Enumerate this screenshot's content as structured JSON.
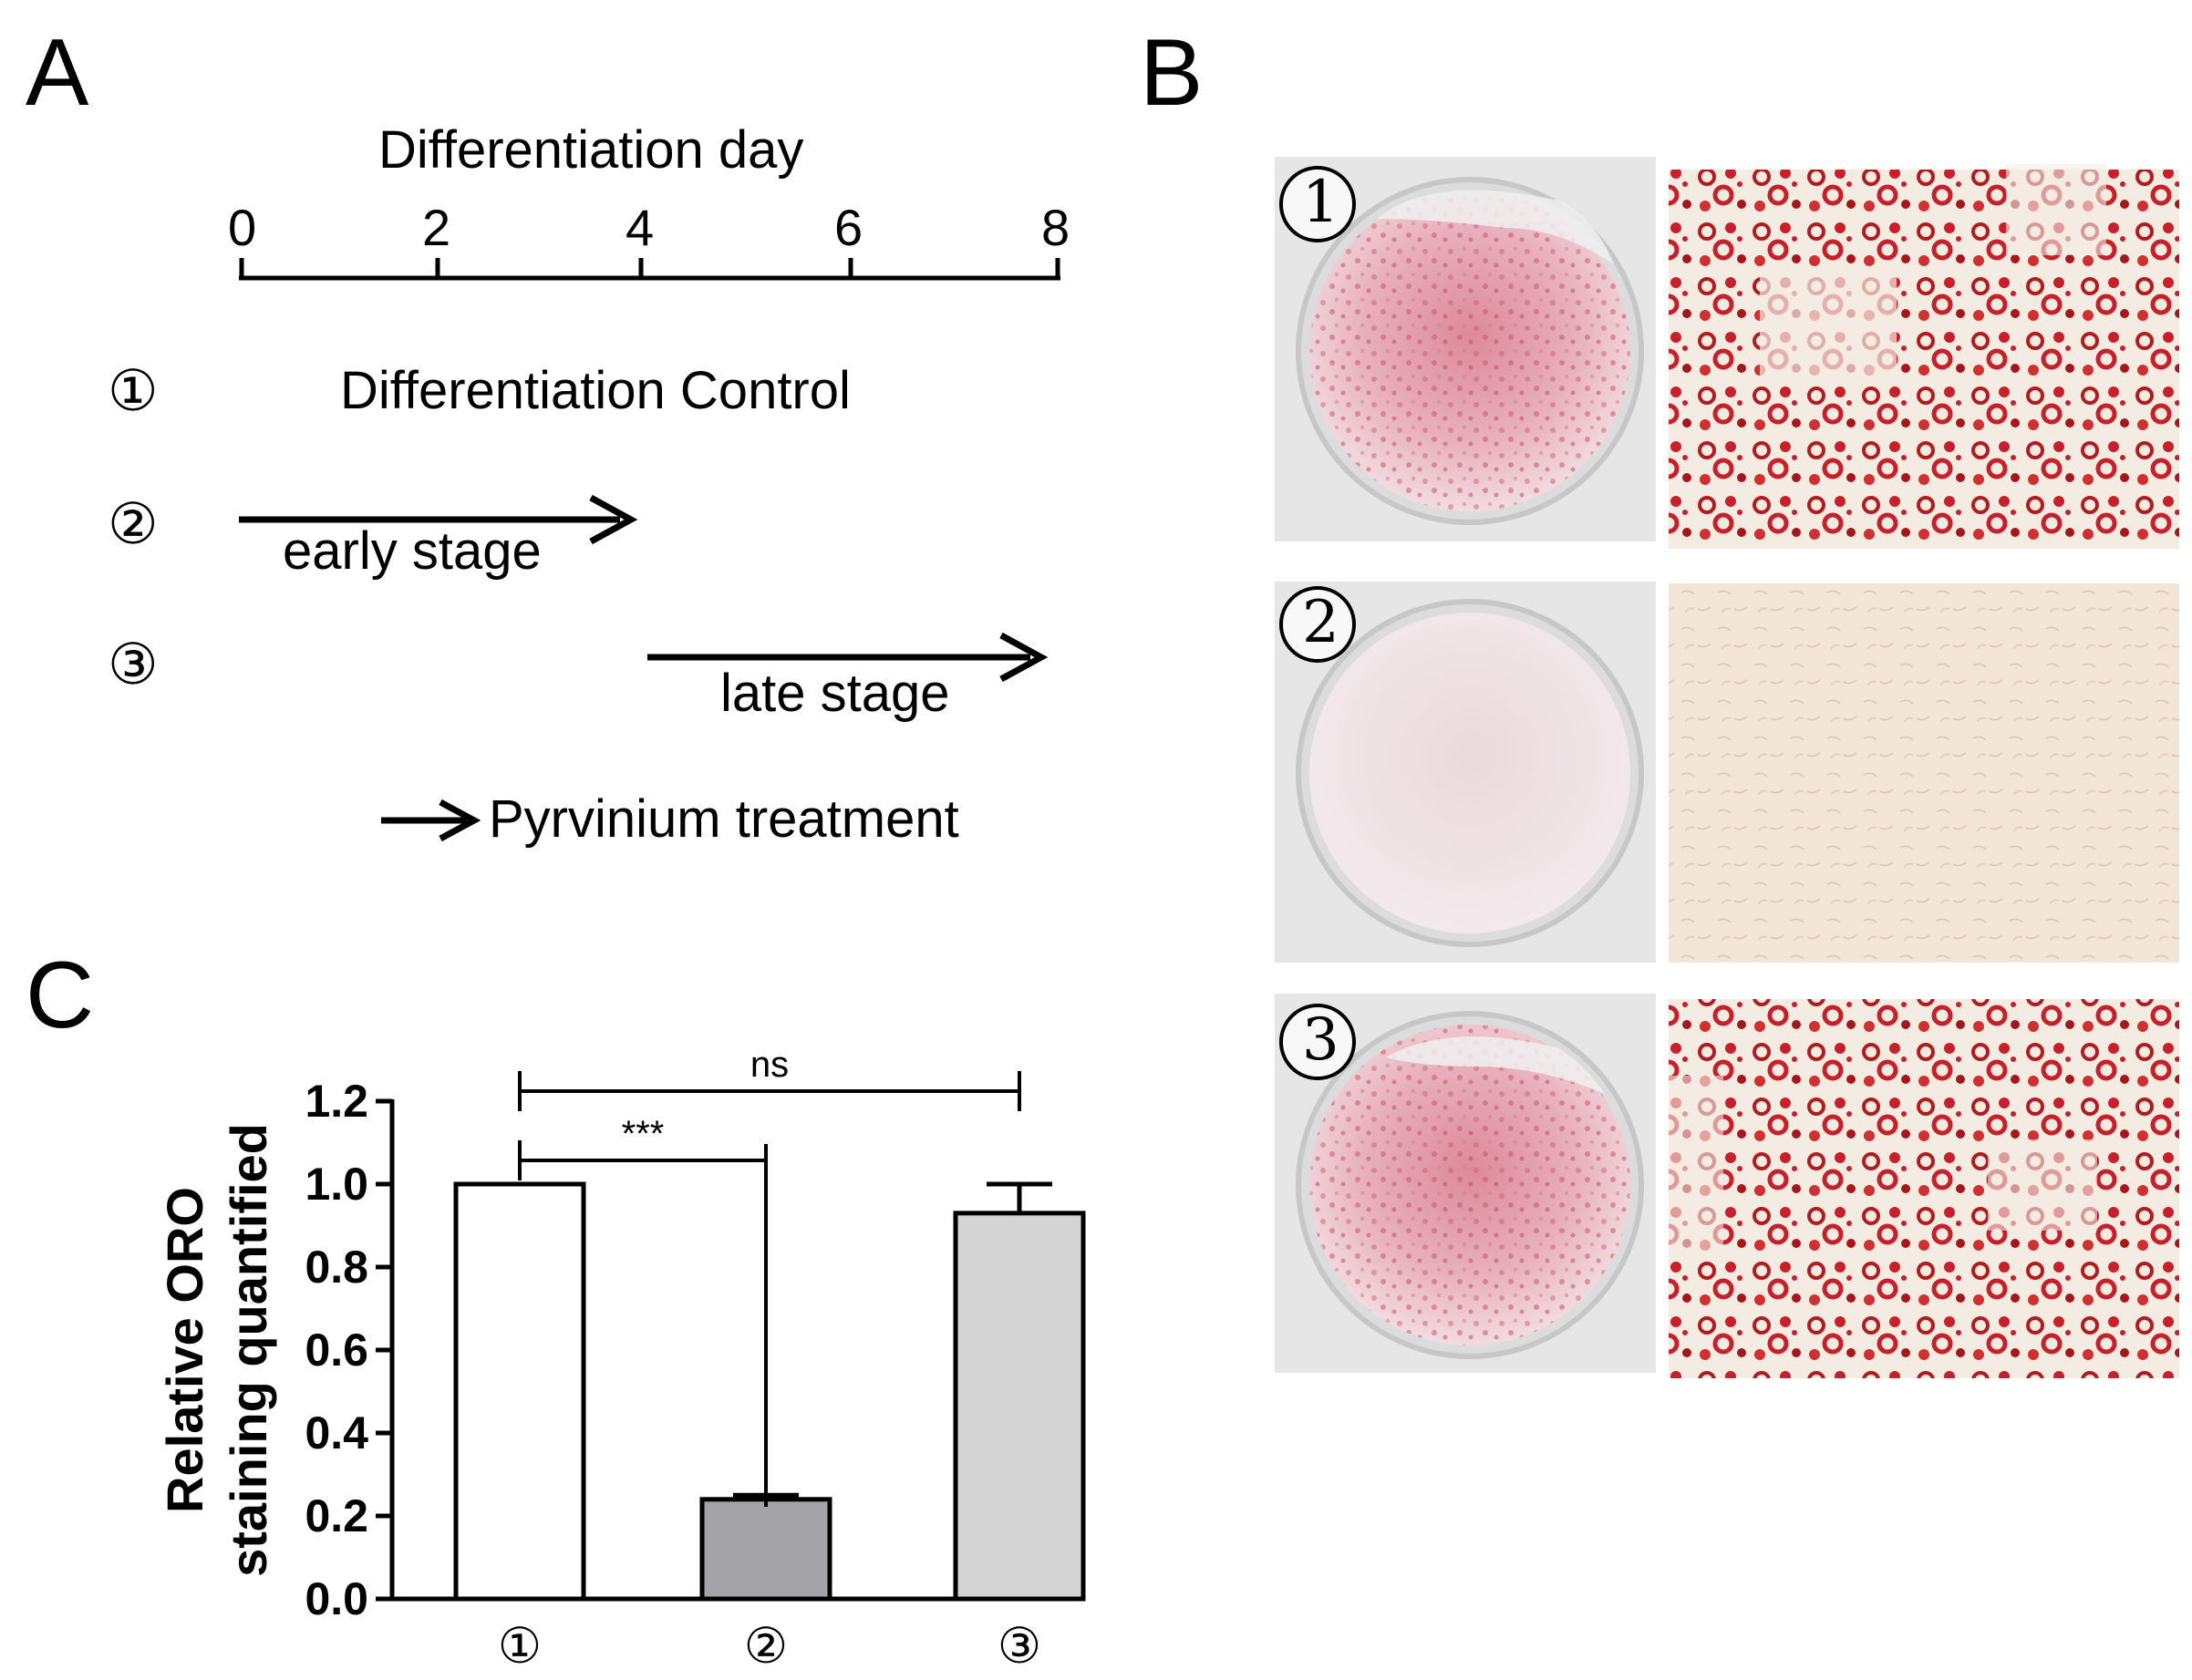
{
  "panel_a": {
    "letter": "A",
    "timeline_title": "Differentiation day",
    "ticks": [
      "0",
      "2",
      "4",
      "6",
      "8"
    ],
    "rows": [
      {
        "marker": "①",
        "label": "Differentiation Control"
      },
      {
        "marker": "②",
        "label": "early stage"
      },
      {
        "marker": "③",
        "label": "late stage"
      }
    ],
    "legend": "Pyrvinium treatment"
  },
  "panel_b": {
    "letter": "B",
    "rows": [
      {
        "marker": "①",
        "stain": "high"
      },
      {
        "marker": "②",
        "stain": "none"
      },
      {
        "marker": "③",
        "stain": "high"
      }
    ],
    "colors": {
      "stain_red": "#c8202a",
      "well_pink": "#e8a0ae",
      "background_beige": "#f3e9dc"
    }
  },
  "panel_c": {
    "letter": "C",
    "chart_data": {
      "type": "bar",
      "categories": [
        "①",
        "②",
        "③"
      ],
      "values": [
        1.0,
        0.24,
        0.93
      ],
      "errors": [
        0.0,
        0.01,
        0.07
      ],
      "bar_colors": [
        "#ffffff",
        "#a3a3a8",
        "#d4d4d4"
      ],
      "ylabel": "Relative ORO staining quantified",
      "ylabel_lines": [
        "Relative ORO",
        "staining quantified"
      ],
      "ylim": [
        0,
        1.2
      ],
      "yticks": [
        "0.0",
        "0.2",
        "0.4",
        "0.6",
        "0.8",
        "1.0",
        "1.2"
      ],
      "significance": [
        {
          "from": 0,
          "to": 1,
          "label": "***"
        },
        {
          "from": 0,
          "to": 2,
          "label": "ns"
        }
      ]
    }
  }
}
